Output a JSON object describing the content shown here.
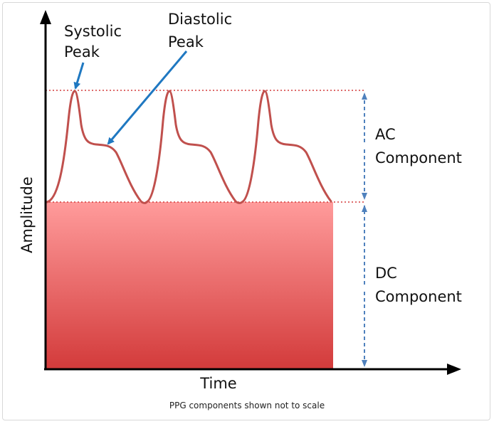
{
  "diagram": {
    "labels": {
      "systolic_line1": "Systolic",
      "systolic_line2": "Peak",
      "diastolic_line1": "Diastolic",
      "diastolic_line2": "Peak",
      "ac_line1": "AC",
      "ac_line2": "Component",
      "dc_line1": "DC",
      "dc_line2": "Component",
      "y_axis": "Amplitude",
      "x_axis": "Time"
    },
    "colors": {
      "waveform": "#c0504d",
      "dc_top": "#ff9b9b",
      "dc_bottom": "#d33b3b",
      "arrow": "#1f78c1",
      "dim_line": "#4f81bd",
      "dotted": "#d43c3c"
    }
  },
  "caption": "PPG components shown not to scale"
}
